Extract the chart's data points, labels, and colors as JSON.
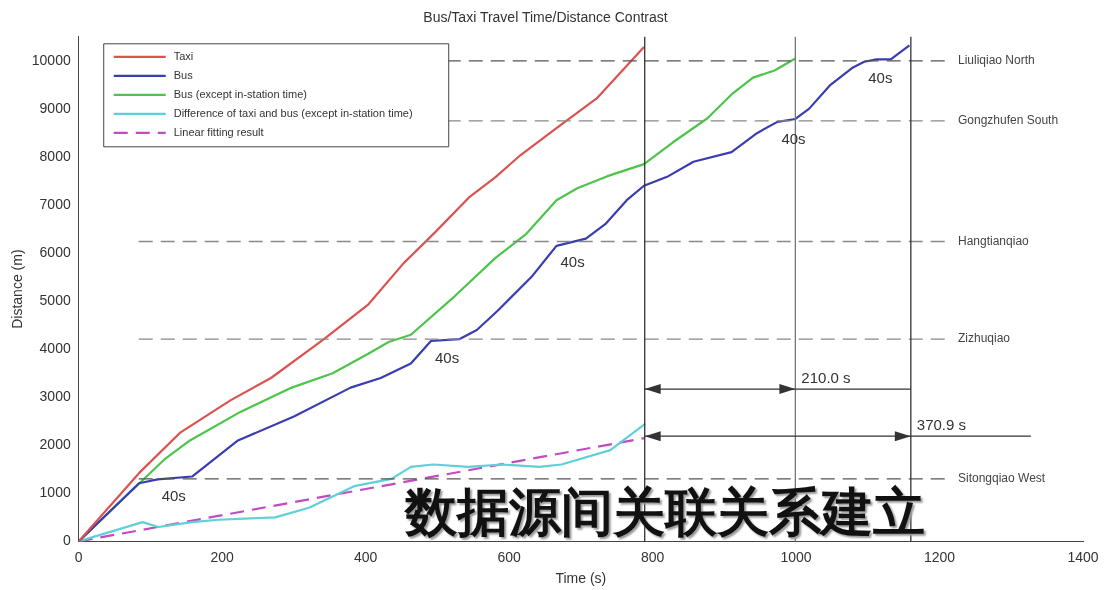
{
  "chart_data": {
    "type": "line",
    "title": "Bus/Taxi Travel Time/Distance Contrast",
    "xlabel": "Time (s)",
    "ylabel": "Distance (m)",
    "xlim": [
      0,
      1400
    ],
    "xticks": [
      0,
      200,
      400,
      600,
      800,
      1000,
      1200,
      1400
    ],
    "ylim": [
      0,
      10500
    ],
    "yticks": [
      0,
      1000,
      2000,
      3000,
      4000,
      5000,
      6000,
      7000,
      8000,
      9000,
      10000
    ],
    "grid": false,
    "legend": "top left",
    "marker": "none",
    "series": [
      {
        "name": "Taxi",
        "color": "#d9534f",
        "x": [
          0,
          84,
          142,
          212,
          268,
          340,
          403,
          453,
          496,
          545,
          581,
          616,
          666,
          723,
          788
        ],
        "values": [
          0,
          1420,
          2270,
          2940,
          3400,
          4190,
          4920,
          5790,
          6420,
          7170,
          7580,
          8040,
          8600,
          9230,
          10290
        ]
      },
      {
        "name": "Bus",
        "color": "#3a3db0",
        "x": [
          0,
          84,
          110,
          158,
          222,
          300,
          379,
          421,
          463,
          491,
          531,
          555,
          584,
          631,
          666,
          707,
          734,
          764,
          788,
          822,
          857,
          910,
          946,
          974,
          999,
          1018,
          1048,
          1078,
          1095,
          1112,
          1132,
          1158
        ],
        "values": [
          0,
          1210,
          1290,
          1350,
          2100,
          2600,
          3200,
          3400,
          3700,
          4170,
          4210,
          4400,
          4800,
          5500,
          6150,
          6300,
          6600,
          7100,
          7400,
          7600,
          7900,
          8100,
          8500,
          8730,
          8790,
          9000,
          9500,
          9850,
          9980,
          10030,
          10030,
          10320
        ]
      },
      {
        "name": "Bus (except in-station time)",
        "color": "#4cc54a",
        "x": [
          0,
          84,
          119,
          155,
          226,
          297,
          354,
          403,
          432,
          463,
          524,
          581,
          624,
          666,
          695,
          737,
          788,
          828,
          876,
          910,
          940,
          970,
          999
        ],
        "values": [
          0,
          1200,
          1700,
          2100,
          2700,
          3200,
          3500,
          3900,
          4150,
          4300,
          5100,
          5900,
          6400,
          7100,
          7350,
          7600,
          7850,
          8300,
          8800,
          9300,
          9650,
          9800,
          10050
        ]
      },
      {
        "name": "Difference of taxi and bus (except in-station time)",
        "color": "#5fd0d6",
        "x": [
          0,
          89,
          111,
          158,
          195,
          274,
          321,
          384,
          436,
          463,
          494,
          543,
          590,
          642,
          673,
          741,
          790
        ],
        "values": [
          0,
          400,
          300,
          400,
          450,
          500,
          700,
          1150,
          1300,
          1550,
          1600,
          1550,
          1600,
          1550,
          1600,
          1900,
          2450
        ]
      },
      {
        "name": "Linear fitting result",
        "color": "#c04cc0",
        "line_style": "dashed",
        "x": [
          0,
          789
        ],
        "values": [
          0,
          2150
        ]
      }
    ],
    "ref_lines": [
      {
        "axis": "y",
        "value": 10000,
        "label": "Liuliqiao North",
        "color": "#555555",
        "line_style": "dashed"
      },
      {
        "axis": "y",
        "value": 8750,
        "label": "Gongzhufen South",
        "color": "#888888",
        "line_style": "dashed"
      },
      {
        "axis": "y",
        "value": 6240,
        "label": "Hangtianqiao",
        "color": "#888888",
        "line_style": "dashed"
      },
      {
        "axis": "y",
        "value": 4210,
        "label": "Zizhuqiao",
        "color": "#888888",
        "line_style": "dashed"
      },
      {
        "axis": "y",
        "value": 1300,
        "label": "Sitongqiao West",
        "color": "#555555",
        "line_style": "dashed"
      },
      {
        "axis": "x",
        "value": 789,
        "color": "#333333",
        "line_style": "solid"
      },
      {
        "axis": "x",
        "value": 999,
        "color": "#777777",
        "line_style": "solid"
      },
      {
        "axis": "x",
        "value": 1160,
        "color": "#333333",
        "line_style": "solid"
      }
    ],
    "annotations": [
      {
        "text": "40s",
        "x": 110,
        "y": 1290
      },
      {
        "text": "40s",
        "x": 491,
        "y": 4170
      },
      {
        "text": "40s",
        "x": 666,
        "y": 6150
      },
      {
        "text": "40s",
        "x": 974,
        "y": 8730
      },
      {
        "text": "40s",
        "x": 1095,
        "y": 9980
      },
      {
        "text": "210.0 s",
        "x": 999,
        "y": 3170
      },
      {
        "text": "370.9 s",
        "x": 1160,
        "y": 2190
      },
      "数据源间关联关系建立"
    ]
  }
}
